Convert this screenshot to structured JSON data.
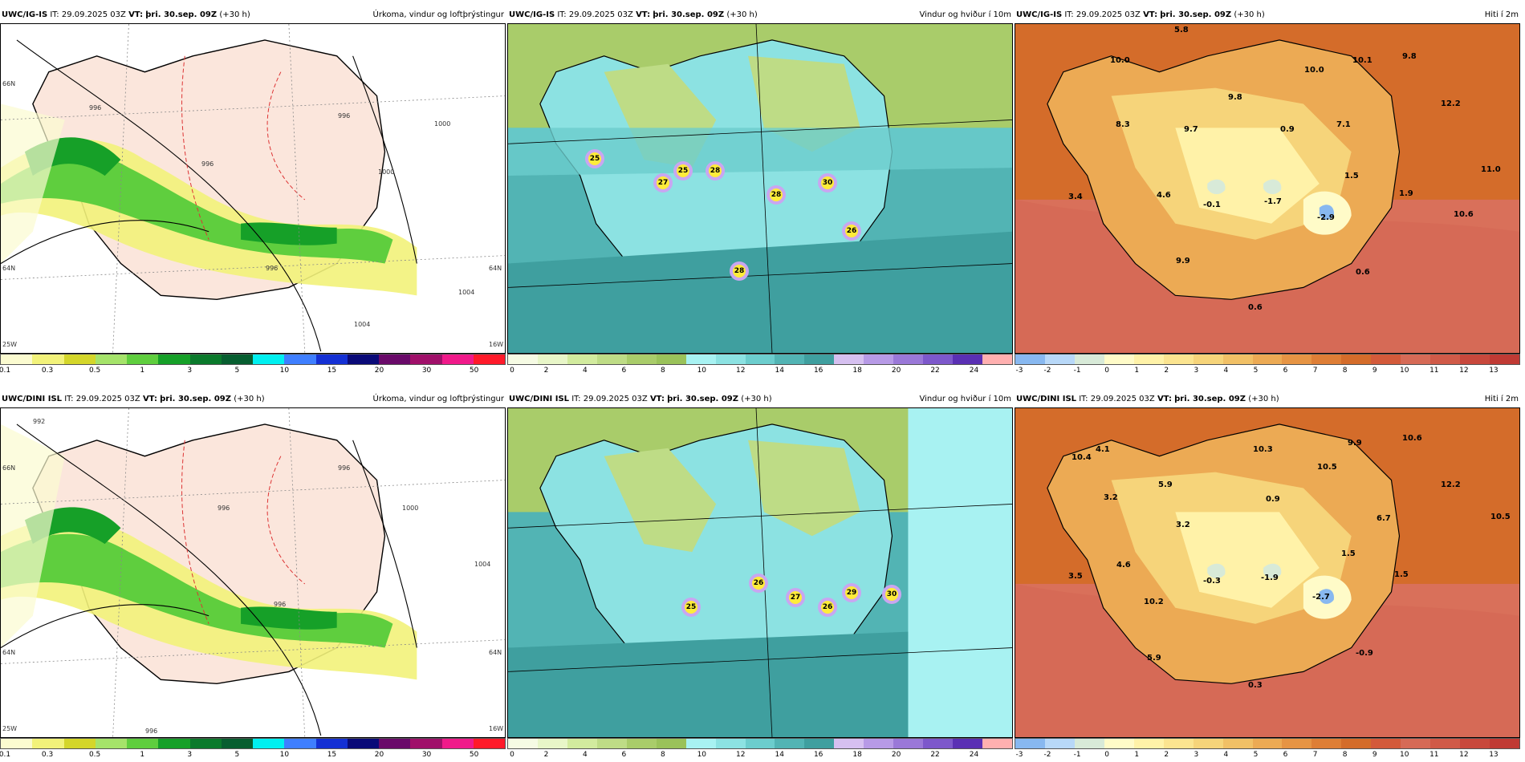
{
  "rows": [
    {
      "model": "UWC/IG-IS",
      "it": "IT: 29.09.2025 03Z",
      "vt_label": "VT:",
      "vt": "þri. 30.sep. 09Z",
      "lead": "(+30 h)",
      "panels": {
        "precip": {
          "title": "Úrkoma, vindur og loftþrýstingur",
          "isobars": [
            "996",
            "996",
            "1000",
            "1000",
            "996",
            "996",
            "1004",
            "1004"
          ],
          "grid_labels": [
            "66N",
            "64N",
            "25W",
            "64N",
            "16W"
          ]
        },
        "wind": {
          "title": "Vindur og hviður í 10m",
          "gusts": [
            "25",
            "25",
            "27",
            "28",
            "28",
            "30",
            "26",
            "28"
          ]
        },
        "temp": {
          "title": "Hiti í 2m",
          "values": [
            "5.8",
            "10.0",
            "10.0",
            "10.1",
            "9.8",
            "8.3",
            "9.8",
            "9.7",
            "0.9",
            "7.1",
            "12.2",
            "3.4",
            "4.6",
            "-0.1",
            "-1.7",
            "1.5",
            "11.0",
            "1.9",
            "-2.9",
            "10.6",
            "9.9",
            "0.6",
            "0.6"
          ]
        }
      }
    },
    {
      "model": "UWC/DINI ISL",
      "it": "IT: 29.09.2025 03Z",
      "vt_label": "VT:",
      "vt": "þri. 30.sep. 09Z",
      "lead": "(+30 h)",
      "panels": {
        "precip": {
          "title": "Úrkoma, vindur og loftþrýstingur",
          "isobars": [
            "992",
            "996",
            "1000",
            "996",
            "996",
            "1004",
            "996"
          ],
          "grid_labels": [
            "66N",
            "64N",
            "25W",
            "64N",
            "16W"
          ]
        },
        "wind": {
          "title": "Vindur og hviður í 10m",
          "gusts": [
            "25",
            "26",
            "27",
            "29",
            "26",
            "30"
          ]
        },
        "temp": {
          "title": "Hiti í 2m",
          "values": [
            "10.4",
            "4.1",
            "10.3",
            "9.9",
            "10.6",
            "5.9",
            "10.5",
            "3.2",
            "0.9",
            "12.2",
            "3.2",
            "6.7",
            "10.5",
            "3.5",
            "4.6",
            "-0.3",
            "-1.9",
            "1.5",
            "-2.7",
            "1.5",
            "10.2",
            "5.9",
            "-0.9",
            "0.3"
          ]
        }
      }
    }
  ],
  "legends": {
    "precip": {
      "colors": [
        "#fbfbd0",
        "#f2f27a",
        "#d4d62a",
        "#a5e36a",
        "#5fce3e",
        "#16a028",
        "#0b7a2c",
        "#075e30",
        "#00f0f0",
        "#3f7fff",
        "#1430d4",
        "#0a0a78",
        "#6a0a6a",
        "#a0106a",
        "#f01a8a",
        "#ff1a2a"
      ],
      "ticks": [
        "0.1",
        "0.3",
        "0.5",
        "1",
        "3",
        "5",
        "10",
        "15",
        "20",
        "30",
        "50"
      ]
    },
    "wind": {
      "colors": [
        "#f6fbe4",
        "#e8f6c8",
        "#d2eb9e",
        "#bedc86",
        "#a9cc6a",
        "#9ac25a",
        "#a8f2f2",
        "#8ce2e2",
        "#6ccdcd",
        "#52b4b4",
        "#3f9f9f",
        "#d6c0f0",
        "#b79ae6",
        "#9a78d8",
        "#7d58cb",
        "#5a30b4",
        "#ffb0b0"
      ],
      "ticks": [
        "0",
        "2",
        "4",
        "6",
        "8",
        "10",
        "12",
        "14",
        "16",
        "18",
        "20",
        "22",
        "24"
      ]
    },
    "temp": {
      "colors": [
        "#88b8f0",
        "#b8d8f8",
        "#d8ead8",
        "#fffbc8",
        "#fff2a8",
        "#fbe490",
        "#f6d47a",
        "#f1c066",
        "#ecaa54",
        "#e69444",
        "#de7e36",
        "#d46c2a",
        "#d35a3a",
        "#d66a56",
        "#d05a48",
        "#c8483c",
        "#c03a34"
      ],
      "ticks": [
        "-3",
        "-2",
        "-1",
        "0",
        "1",
        "2",
        "3",
        "4",
        "5",
        "6",
        "7",
        "8",
        "9",
        "10",
        "11",
        "12",
        "13"
      ]
    }
  },
  "colors": {
    "land_dry": "#fbe6dc",
    "sea_precip": "#ffffff",
    "wind_base": "#6ccdcd",
    "temp_base": "#d9705a"
  }
}
